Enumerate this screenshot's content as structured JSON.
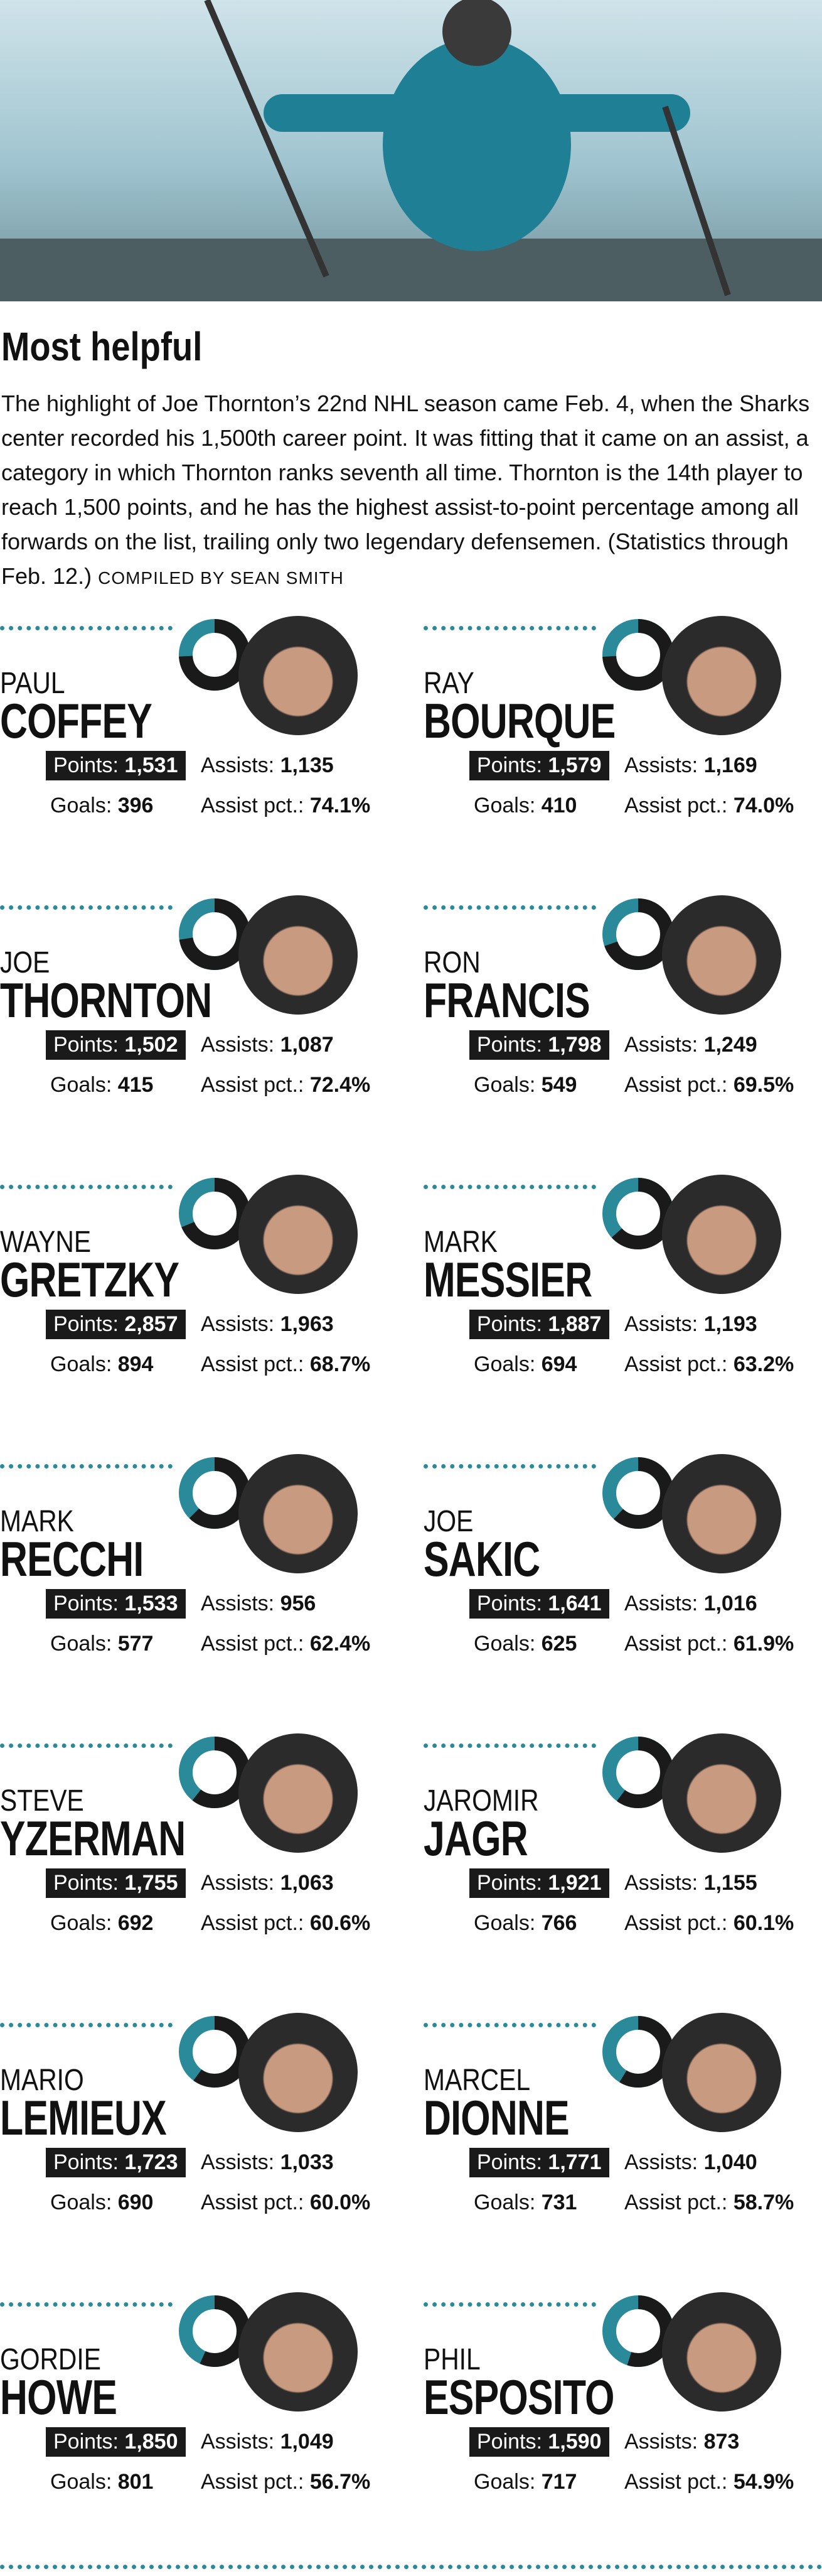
{
  "header": {
    "title": "Most helpful",
    "intro": "The highlight of Joe Thornton’s 22nd NHL season came Feb. 4, when the Sharks center recorded his 1,500th career point. It was fitting that it came on an assist, a category in which Thornton ranks seventh all time. Thornton is the 14th player to reach 1,500 points, and he has the highest assist-to-point percentage among all forwards on the list, trailing only two legendary defensemen. (Statistics through Feb. 12.)",
    "credit": "COMPILED BY SEAN SMITH"
  },
  "labels": {
    "points": "Points:",
    "assists": "Assists:",
    "goals": "Goals:",
    "assist_pct": "Assist pct.:"
  },
  "players": [
    {
      "first": "PAUL",
      "last": "COFFEY",
      "points": "1,531",
      "assists": "1,135",
      "goals": "396",
      "assist_pct": 74.1,
      "assist_pct_label": "74.1%"
    },
    {
      "first": "RAY",
      "last": "BOURQUE",
      "points": "1,579",
      "assists": "1,169",
      "goals": "410",
      "assist_pct": 74.0,
      "assist_pct_label": "74.0%"
    },
    {
      "first": "JOE",
      "last": "THORNTON",
      "points": "1,502",
      "assists": "1,087",
      "goals": "415",
      "assist_pct": 72.4,
      "assist_pct_label": "72.4%"
    },
    {
      "first": "RON",
      "last": "FRANCIS",
      "points": "1,798",
      "assists": "1,249",
      "goals": "549",
      "assist_pct": 69.5,
      "assist_pct_label": "69.5%"
    },
    {
      "first": "WAYNE",
      "last": "GRETZKY",
      "points": "2,857",
      "assists": "1,963",
      "goals": "894",
      "assist_pct": 68.7,
      "assist_pct_label": "68.7%"
    },
    {
      "first": "MARK",
      "last": "MESSIER",
      "points": "1,887",
      "assists": "1,193",
      "goals": "694",
      "assist_pct": 63.2,
      "assist_pct_label": "63.2%"
    },
    {
      "first": "MARK",
      "last": "RECCHI",
      "points": "1,533",
      "assists": "956",
      "goals": "577",
      "assist_pct": 62.4,
      "assist_pct_label": "62.4%"
    },
    {
      "first": "JOE",
      "last": "SAKIC",
      "points": "1,641",
      "assists": "1,016",
      "goals": "625",
      "assist_pct": 61.9,
      "assist_pct_label": "61.9%"
    },
    {
      "first": "STEVE",
      "last": "YZERMAN",
      "points": "1,755",
      "assists": "1,063",
      "goals": "692",
      "assist_pct": 60.6,
      "assist_pct_label": "60.6%"
    },
    {
      "first": "JAROMIR",
      "last": "JAGR",
      "points": "1,921",
      "assists": "1,155",
      "goals": "766",
      "assist_pct": 60.1,
      "assist_pct_label": "60.1%"
    },
    {
      "first": "MARIO",
      "last": "LEMIEUX",
      "points": "1,723",
      "assists": "1,033",
      "goals": "690",
      "assist_pct": 60.0,
      "assist_pct_label": "60.0%"
    },
    {
      "first": "MARCEL",
      "last": "DIONNE",
      "points": "1,771",
      "assists": "1,040",
      "goals": "731",
      "assist_pct": 58.7,
      "assist_pct_label": "58.7%"
    },
    {
      "first": "GORDIE",
      "last": "HOWE",
      "points": "1,850",
      "assists": "1,049",
      "goals": "801",
      "assist_pct": 56.7,
      "assist_pct_label": "56.7%"
    },
    {
      "first": "PHIL",
      "last": "ESPOSITO",
      "points": "1,590",
      "assists": "873",
      "goals": "717",
      "assist_pct": 54.9,
      "assist_pct_label": "54.9%"
    }
  ]
}
